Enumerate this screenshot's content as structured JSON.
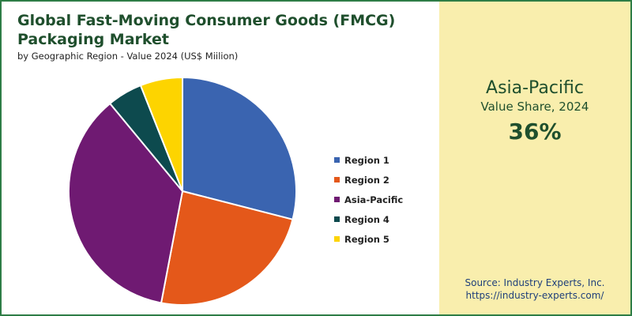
{
  "chart_data": {
    "type": "pie",
    "title": "Global Fast-Moving Consumer Goods (FMCG) Packaging Market",
    "subtitle": "by Geographic Region - Value 2024 (US$ Miilion)",
    "categories": [
      "Region 1",
      "Region 2",
      "Asia-Pacific",
      "Region 4",
      "Region 5"
    ],
    "values": [
      29,
      24,
      36,
      5,
      6
    ],
    "colors": [
      "#3a64b0",
      "#e4581a",
      "#6f1a72",
      "#0d4a4e",
      "#fdd400"
    ],
    "start_angle": "12 o'clock",
    "direction": "clockwise",
    "legend_position": "right"
  },
  "highlight": {
    "region": "Asia-Pacific",
    "label": "Value Share, 2024",
    "value": "36%"
  },
  "source": {
    "line1": "Source: Industry Experts, Inc.",
    "line2": "https://industry-experts.com/"
  },
  "colors": {
    "border": "#2e7d46",
    "panel_background": "#f9eead",
    "title": "#1f4f2d",
    "source_text": "#1f3f7a"
  }
}
